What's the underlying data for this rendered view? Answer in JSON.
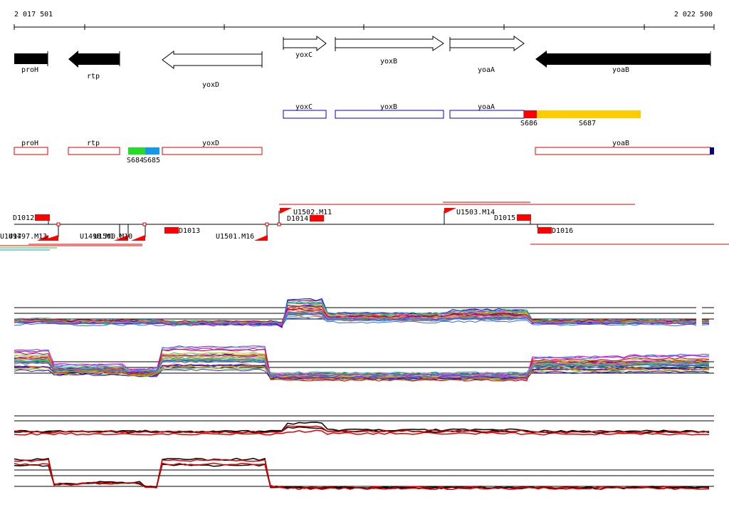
{
  "axis": {
    "start_label": "2 017 501",
    "end_label": "2 022 500",
    "start": 2017501,
    "end": 2022500
  },
  "colors": {
    "gene_outline": "#000000",
    "gene_fill_reverse": "#000000",
    "transcript_red": "#dd0000",
    "transcript_blue": "#0000cc",
    "segment_red": "#ff0000",
    "segment_yellow": "#ffcc00",
    "segment_green": "#22dd22",
    "segment_blue": "#1199ee",
    "segment_navy": "#000088"
  },
  "genes": [
    {
      "name": "proH",
      "strand": "-",
      "filled": true
    },
    {
      "name": "rtp",
      "strand": "-",
      "filled": true
    },
    {
      "name": "yoxD",
      "strand": "-",
      "filled": false
    },
    {
      "name": "yoxC",
      "strand": "+",
      "filled": false
    },
    {
      "name": "yoxB",
      "strand": "+",
      "filled": false
    },
    {
      "name": "yoaA",
      "strand": "+",
      "filled": false
    },
    {
      "name": "yoaB",
      "strand": "-",
      "filled": true
    }
  ],
  "forward_track": {
    "boxes": [
      "yoxC",
      "yoxB",
      "yoaA"
    ],
    "segments": [
      "S686",
      "S687"
    ]
  },
  "reverse_track": {
    "boxes": [
      "proH",
      "rtp",
      "yoxD",
      "yoaB"
    ],
    "segments": [
      "S684",
      "S685"
    ]
  },
  "upper_features": [
    "D1012",
    "U1502.M11",
    "D1014",
    "U1503.M14",
    "D1015"
  ],
  "lower_features": [
    "U1497.M13",
    "U1498.M1",
    "U1500.M10",
    "D1013",
    "U1501.M16",
    "D1016"
  ],
  "overlapping_label": "U1497",
  "profile_panels": [
    "forward-expression-profiles",
    "reverse-expression-profiles",
    "forward-summary-profiles",
    "reverse-summary-profiles"
  ]
}
